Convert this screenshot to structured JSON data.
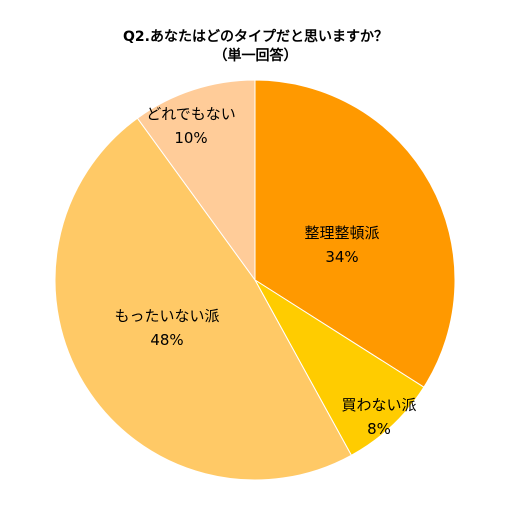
{
  "chart_data": {
    "type": "pie",
    "title": [
      "Q2.あなたはどのタイプだと思いますか？",
      "（単一回答）"
    ],
    "start_angle": "12 o'clock",
    "direction": "clockwise",
    "slices": [
      {
        "label": "整理整頓派",
        "value": 34,
        "value_label": "34%",
        "color": "#FF9900"
      },
      {
        "label": "買わない派",
        "value": 8,
        "value_label": "8%",
        "color": "#FFCC00"
      },
      {
        "label": "もったいない派",
        "value": 48,
        "value_label": "48%",
        "color": "#FFC966"
      },
      {
        "label": "どれでもない",
        "value": 10,
        "value_label": "10%",
        "color": "#FFCC99"
      }
    ]
  }
}
